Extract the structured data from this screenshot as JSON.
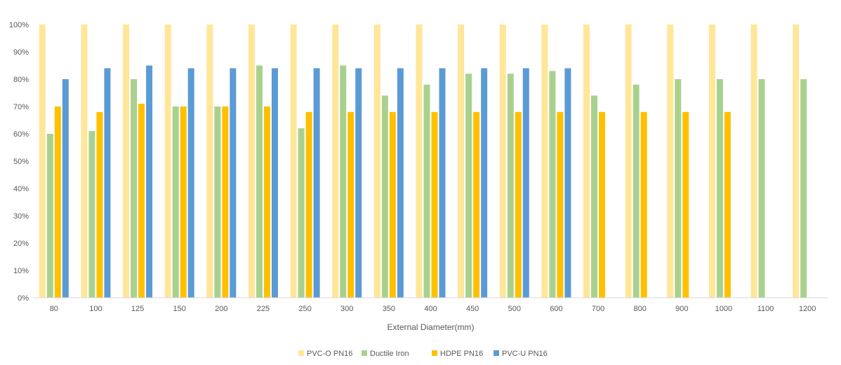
{
  "chart_data": {
    "type": "bar",
    "title": "",
    "xlabel": "External Diameter(mm)",
    "ylabel": "",
    "ylim": [
      0,
      100
    ],
    "y_unit": "%",
    "y_ticks": [
      0,
      10,
      20,
      30,
      40,
      50,
      60,
      70,
      80,
      90,
      100
    ],
    "grid": false,
    "legend_position": "bottom",
    "categories": [
      "80",
      "100",
      "125",
      "150",
      "200",
      "225",
      "250",
      "300",
      "350",
      "400",
      "450",
      "500",
      "600",
      "700",
      "800",
      "900",
      "1000",
      "1100",
      "1200"
    ],
    "series": [
      {
        "name": "PVC-O PN16",
        "color": "#ffe699",
        "values": [
          100,
          100,
          100,
          100,
          100,
          100,
          100,
          100,
          100,
          100,
          100,
          100,
          100,
          100,
          100,
          100,
          100,
          100,
          100
        ]
      },
      {
        "name": "Ductile Iron",
        "color": "#a9d18e",
        "values": [
          60,
          61,
          80,
          70,
          70,
          85,
          62,
          85,
          74,
          78,
          82,
          82,
          83,
          74,
          78,
          80,
          80,
          80,
          80
        ]
      },
      {
        "name": "HDPE PN16",
        "color": "#ffc000",
        "values": [
          70,
          68,
          71,
          70,
          70,
          70,
          68,
          68,
          68,
          68,
          68,
          68,
          68,
          68,
          68,
          68,
          68,
          null,
          null
        ]
      },
      {
        "name": "PVC-U PN16",
        "color": "#5b9bd5",
        "values": [
          80,
          84,
          85,
          84,
          84,
          84,
          84,
          84,
          84,
          84,
          84,
          84,
          84,
          null,
          null,
          null,
          null,
          null,
          null
        ]
      }
    ]
  }
}
